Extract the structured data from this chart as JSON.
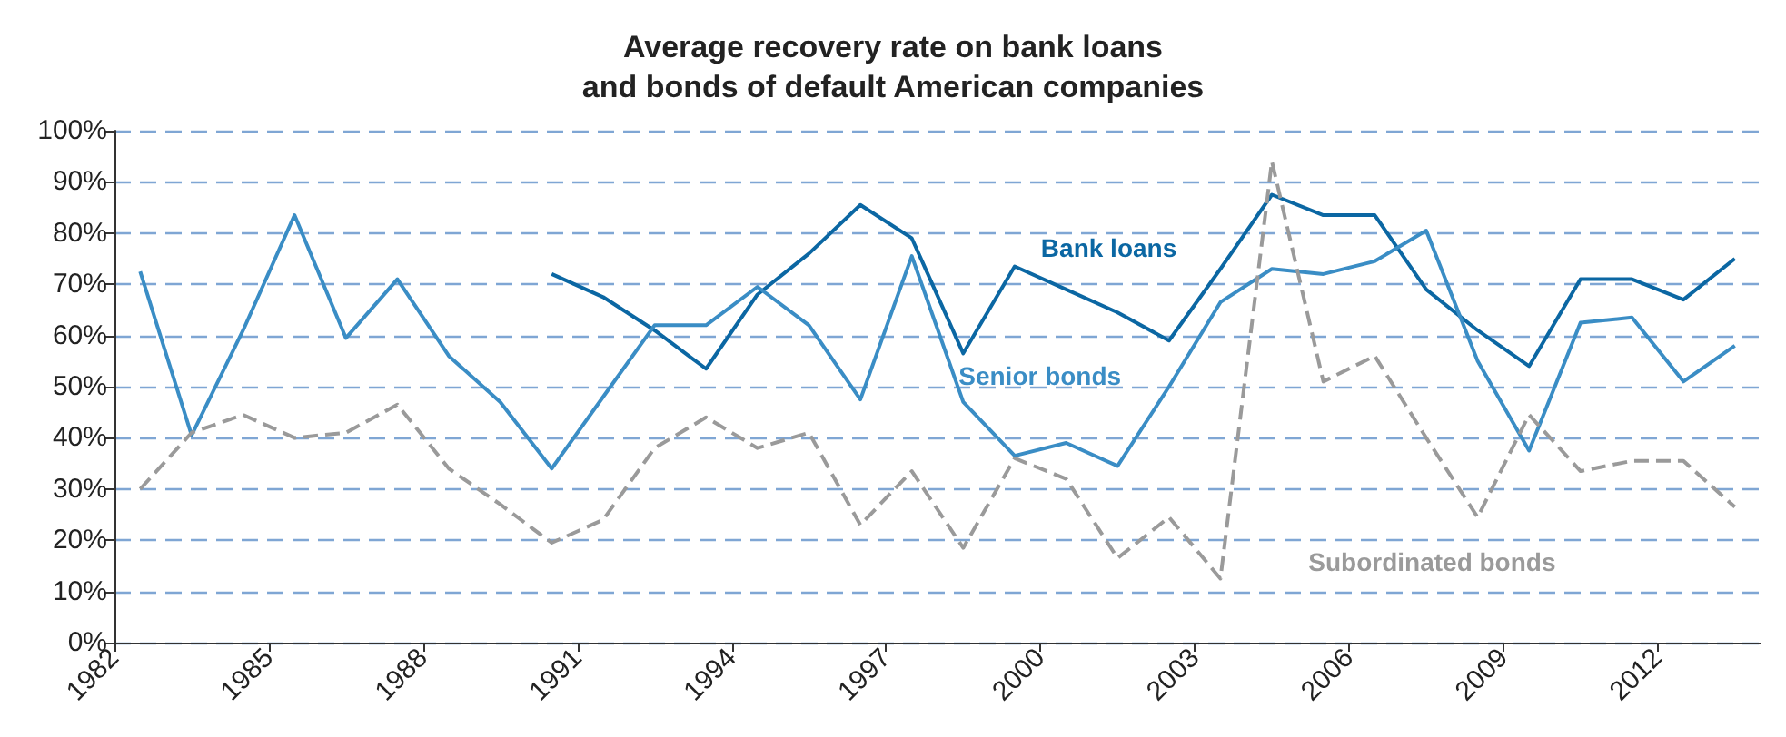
{
  "chart_data": {
    "type": "line",
    "title": "Average recovery rate on bank loans\nand bonds of default American companies",
    "x": [
      1982.5,
      1983.5,
      1984.5,
      1985.5,
      1986.5,
      1987.5,
      1988.5,
      1989.5,
      1990.5,
      1991.5,
      1992.5,
      1993.5,
      1994.5,
      1995.5,
      1996.5,
      1997.5,
      1998.5,
      1999.5,
      2000.5,
      2001.5,
      2002.5,
      2003.5,
      2004.5,
      2005.5,
      2006.5,
      2007.5,
      2008.5,
      2009.5,
      2010.5,
      2011.5,
      2012.5,
      2013.5
    ],
    "series": [
      {
        "name": "Bank loans",
        "color": "#0b67a3",
        "line_style": "solid",
        "values": [
          null,
          null,
          null,
          null,
          null,
          null,
          null,
          null,
          72,
          67.5,
          61,
          53.5,
          68,
          76,
          85.5,
          79,
          56.5,
          73.5,
          69,
          64.5,
          59,
          73,
          87.5,
          83.5,
          83.5,
          69,
          61,
          54,
          71,
          71,
          67,
          75
        ]
      },
      {
        "name": "Senior bonds",
        "color": "#3a8dc5",
        "line_style": "solid",
        "values": [
          72.5,
          40.5,
          61,
          83.5,
          59.5,
          71,
          56,
          47,
          34,
          48,
          62,
          62,
          69.5,
          62,
          47.5,
          75.5,
          47,
          36.5,
          39,
          34.5,
          50,
          66.5,
          73,
          72,
          74.5,
          80.5,
          55,
          37.5,
          62.5,
          63.5,
          51,
          58
        ]
      },
      {
        "name": "Subordinated bonds",
        "color": "#9a9a9a",
        "line_style": "dashed",
        "values": [
          30,
          41,
          44.5,
          40,
          41,
          46.5,
          34,
          27,
          19.5,
          24,
          38,
          44,
          38,
          41,
          23,
          33.5,
          18.5,
          36,
          32,
          16.5,
          24.5,
          12.5,
          94,
          51,
          56,
          40,
          24.5,
          44.5,
          33.5,
          35.5,
          35.5,
          26.5
        ]
      }
    ],
    "xlim": [
      1982,
      2014
    ],
    "xticks": [
      1982,
      1985,
      1988,
      1991,
      1994,
      1997,
      2000,
      2003,
      2006,
      2009,
      2012
    ],
    "ylim": [
      0,
      100
    ],
    "yticks": [
      {
        "value": 0,
        "label": "0%"
      },
      {
        "value": 10,
        "label": "10%"
      },
      {
        "value": 20,
        "label": "20%"
      },
      {
        "value": 30,
        "label": "30%"
      },
      {
        "value": 40,
        "label": "40%"
      },
      {
        "value": 50,
        "label": "50%"
      },
      {
        "value": 60,
        "label": "60%"
      },
      {
        "value": 70,
        "label": "70%"
      },
      {
        "value": 80,
        "label": "80%"
      },
      {
        "value": 90,
        "label": "90%"
      },
      {
        "value": 100,
        "label": "100%"
      }
    ],
    "grid": "y",
    "legend": false,
    "marker": "none"
  }
}
